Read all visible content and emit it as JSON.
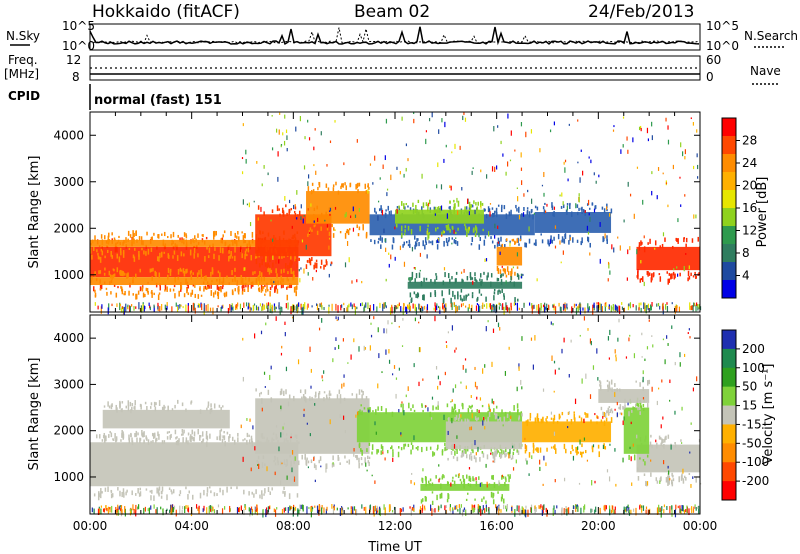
{
  "header": {
    "station": "Hokkaido (fitACF)",
    "beam": "Beam 02",
    "date": "24/Feb/2013"
  },
  "top_panels": {
    "nsky_label": "N.Sky",
    "nsearch_label": "N.Search",
    "noise_ticks_left": [
      "10^5",
      "10^0"
    ],
    "noise_ticks_right": [
      "10^5",
      "10^0"
    ],
    "freq_label": [
      "Freq.",
      "[MHz]"
    ],
    "freq_ticks": [
      "12",
      "8"
    ],
    "nave_label": "Nave",
    "nave_ticks": [
      "60",
      "0"
    ],
    "cpid_label": "CPID",
    "cpid_value": "normal (fast) 151"
  },
  "chart_data": [
    {
      "type": "heatmap",
      "name": "power",
      "ylabel": "Slant Range [km]",
      "xlabel": "",
      "xlim": [
        "00:00",
        "24:00"
      ],
      "ylim": [
        200,
        4500
      ],
      "y_ticks": [
        1000,
        2000,
        3000,
        4000
      ],
      "colorbar": {
        "label": "Power [dB]",
        "ticks": [
          "28",
          "24",
          "20",
          "16",
          "12",
          "8",
          "4"
        ],
        "colors": [
          "#ff0000",
          "#ff4800",
          "#ff8c00",
          "#ffb000",
          "#e6e600",
          "#8fd21e",
          "#2e9a4e",
          "#2f7d5f",
          "#1f4aa0",
          "#0000e6"
        ]
      },
      "bands": [
        {
          "t0": 0.0,
          "t1": 8.2,
          "r0": 950,
          "r1": 1600,
          "color": "#ff2a00"
        },
        {
          "t0": 0.0,
          "t1": 8.2,
          "r0": 1600,
          "r1": 1750,
          "color": "#ff8c00"
        },
        {
          "t0": 0.0,
          "t1": 8.2,
          "r0": 780,
          "r1": 950,
          "color": "#ff8c00"
        },
        {
          "t0": 6.5,
          "t1": 9.5,
          "r0": 1400,
          "r1": 2300,
          "color": "#ff3a00"
        },
        {
          "t0": 8.5,
          "t1": 11.0,
          "r0": 2100,
          "r1": 2800,
          "color": "#ff8c00"
        },
        {
          "t0": 11.0,
          "t1": 17.5,
          "r0": 1850,
          "r1": 2300,
          "color": "#2e62b0"
        },
        {
          "t0": 12.0,
          "t1": 15.5,
          "r0": 2100,
          "r1": 2400,
          "color": "#8fd21e"
        },
        {
          "t0": 17.5,
          "t1": 20.5,
          "r0": 1900,
          "r1": 2350,
          "color": "#2e62b0"
        },
        {
          "t0": 16.0,
          "t1": 17.0,
          "r0": 1200,
          "r1": 1600,
          "color": "#ff8c00"
        },
        {
          "t0": 21.5,
          "t1": 24.0,
          "r0": 1100,
          "r1": 1600,
          "color": "#ff2a00"
        },
        {
          "t0": 12.5,
          "t1": 17.0,
          "r0": 700,
          "r1": 850,
          "color": "#2f7d5f"
        }
      ]
    },
    {
      "type": "heatmap",
      "name": "velocity",
      "ylabel": "Slant Range [km]",
      "xlabel": "Time UT",
      "x_ticks": [
        "00:00",
        "04:00",
        "08:00",
        "12:00",
        "16:00",
        "20:00",
        "00:00"
      ],
      "xlim": [
        "00:00",
        "24:00"
      ],
      "ylim": [
        200,
        4500
      ],
      "y_ticks": [
        1000,
        2000,
        3000,
        4000
      ],
      "colorbar": {
        "label": "Velocity [m s⁻¹]",
        "ticks": [
          "200",
          "100",
          "50",
          "15",
          "-15",
          "-50",
          "-100",
          "-200"
        ],
        "colors": [
          "#1f2fb0",
          "#1f8a4f",
          "#2fa01f",
          "#7fd23a",
          "#c4c4b8",
          "#ffb000",
          "#ff8c00",
          "#ff4800",
          "#ff0000"
        ]
      },
      "bands": [
        {
          "t0": 0.0,
          "t1": 8.2,
          "r0": 800,
          "r1": 1750,
          "color": "#c4c4b8"
        },
        {
          "t0": 6.5,
          "t1": 11.0,
          "r0": 1500,
          "r1": 2700,
          "color": "#c4c4b8"
        },
        {
          "t0": 0.5,
          "t1": 5.5,
          "r0": 2050,
          "r1": 2450,
          "color": "#c4c4b8"
        },
        {
          "t0": 10.5,
          "t1": 17.0,
          "r0": 1750,
          "r1": 2400,
          "color": "#7fd23a"
        },
        {
          "t0": 14.0,
          "t1": 17.0,
          "r0": 1600,
          "r1": 2200,
          "color": "#c4c4b8"
        },
        {
          "t0": 17.0,
          "t1": 20.5,
          "r0": 1750,
          "r1": 2200,
          "color": "#ffb000"
        },
        {
          "t0": 21.5,
          "t1": 24.0,
          "r0": 1100,
          "r1": 1700,
          "color": "#c4c4b8"
        },
        {
          "t0": 21.0,
          "t1": 22.0,
          "r0": 1500,
          "r1": 2500,
          "color": "#7fd23a"
        },
        {
          "t0": 13.0,
          "t1": 16.5,
          "r0": 700,
          "r1": 850,
          "color": "#7fd23a"
        },
        {
          "t0": 20.0,
          "t1": 22.0,
          "r0": 2600,
          "r1": 2900,
          "color": "#c4c4b8"
        }
      ]
    }
  ]
}
